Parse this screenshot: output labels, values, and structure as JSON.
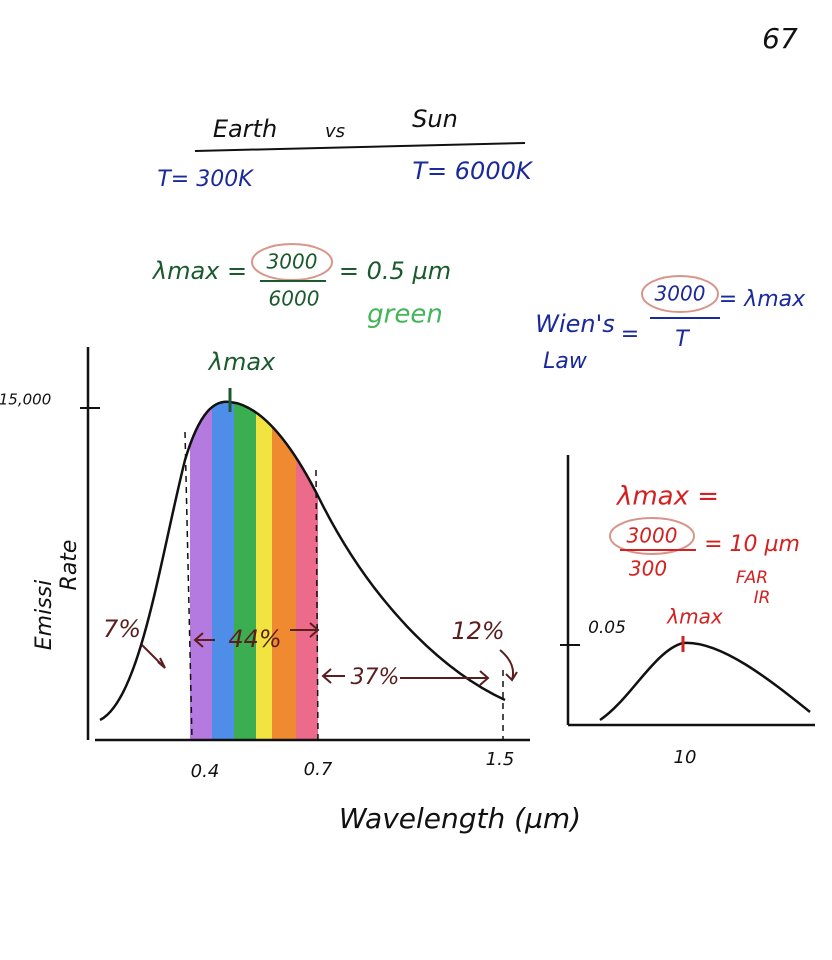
{
  "page_number": "67",
  "heading": {
    "left": "Earth",
    "middle": "vs",
    "right": "Sun"
  },
  "temps": {
    "earth": "T= 300K",
    "sun": "T= 6000K"
  },
  "sun_calc": {
    "lhs": "λmax =",
    "numerator": "3000",
    "denominator": "6000",
    "result": "= 0.5 µm",
    "color_name": "green"
  },
  "wien": {
    "name_line1": "Wien's",
    "name_line2": "Law",
    "eq": "=",
    "numerator": "3000",
    "denominator": "T",
    "rhs": "= λmax"
  },
  "sun_graph": {
    "peak_label": "λmax",
    "y_tick": "15,000",
    "y_label_line1": "Emissi",
    "y_label_line2": "Rate",
    "x_ticks": [
      "0.4",
      "0.7",
      "1.5"
    ],
    "x_label": "Wavelength (µm)",
    "percents": [
      "7%",
      "44%",
      "37%",
      "12%"
    ]
  },
  "earth_graph": {
    "calc_lhs": "λmax =",
    "numerator": "3000",
    "denominator": "300",
    "result": "= 10 µm",
    "band_line1": "FAR",
    "band_line2": "IR",
    "y_tick": "0.05",
    "peak_label": "λmax",
    "x_tick": "10"
  }
}
